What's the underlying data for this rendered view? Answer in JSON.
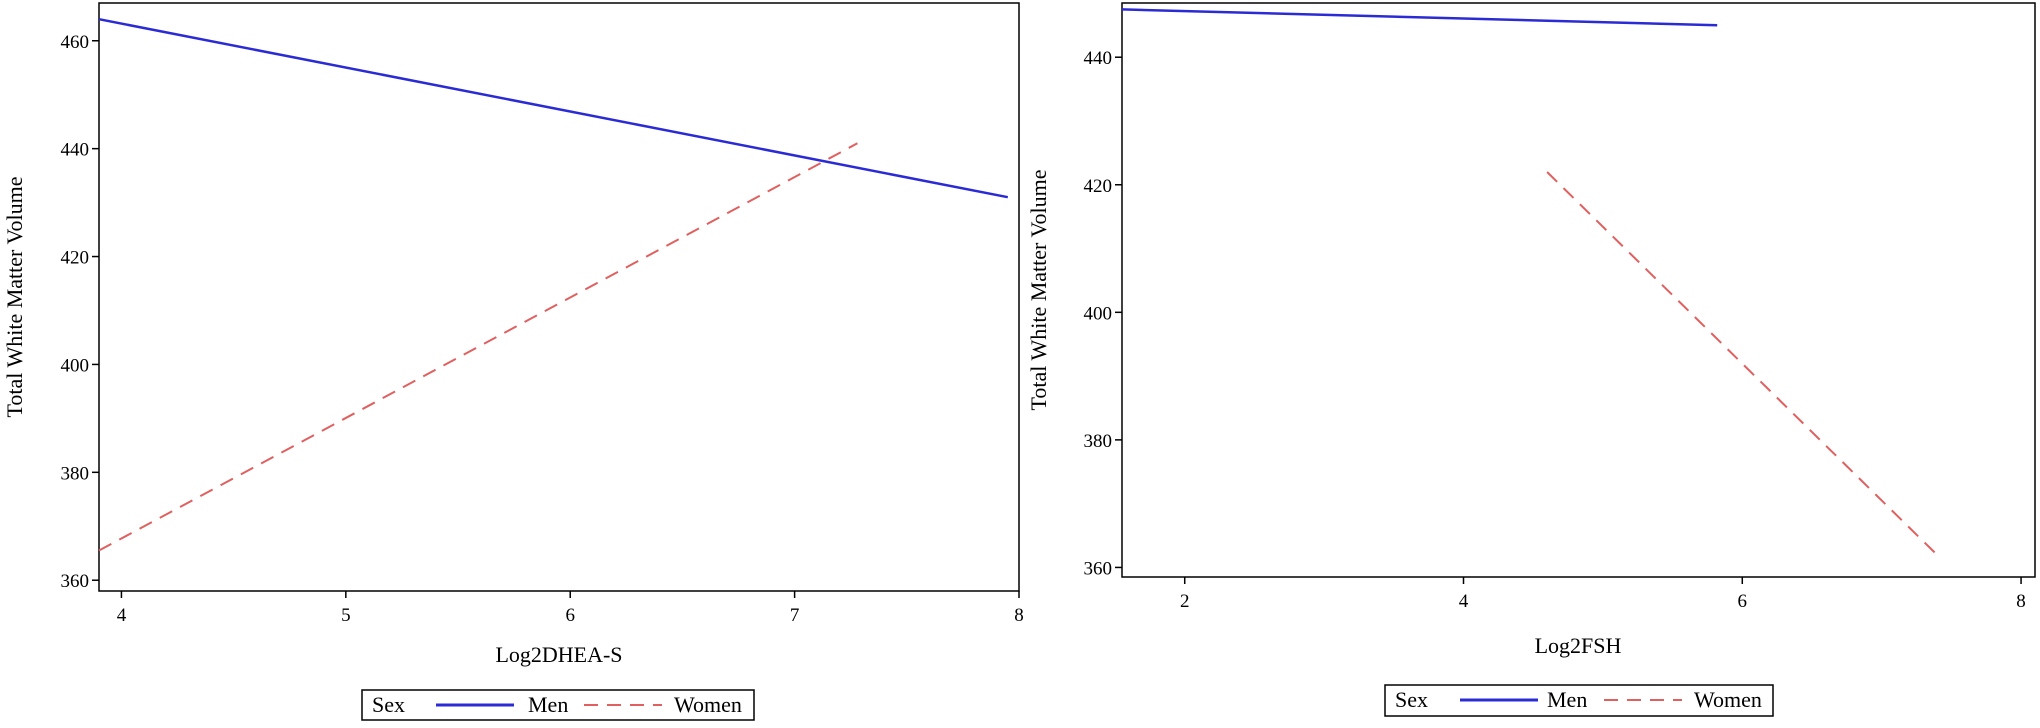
{
  "chart_data": [
    {
      "type": "line",
      "xlabel": "Log2DHEA-S",
      "ylabel": "Total White Matter Volume",
      "xlim": [
        3.9,
        8.0
      ],
      "ylim": [
        358,
        467
      ],
      "xticks": [
        4,
        5,
        6,
        7,
        8
      ],
      "yticks": [
        360,
        380,
        400,
        420,
        440,
        460
      ],
      "grid": false,
      "legend": {
        "position": "bottom",
        "title": "Sex"
      },
      "series": [
        {
          "name": "Men",
          "color": "#2b2bd6",
          "style": "solid",
          "x": [
            3.9,
            7.95
          ],
          "y": [
            464,
            431
          ]
        },
        {
          "name": "Women",
          "color": "#e06060",
          "style": "dashed",
          "x": [
            3.9,
            7.28
          ],
          "y": [
            365.5,
            441
          ]
        }
      ]
    },
    {
      "type": "line",
      "xlabel": "Log2FSH",
      "ylabel": "Total White Matter Volume",
      "xlim": [
        1.55,
        8.1
      ],
      "ylim": [
        358.5,
        448.5
      ],
      "xticks": [
        2,
        4,
        6,
        8
      ],
      "yticks": [
        360,
        380,
        400,
        420,
        440
      ],
      "grid": false,
      "legend": {
        "position": "bottom",
        "title": "Sex"
      },
      "series": [
        {
          "name": "Men",
          "color": "#2b2bd6",
          "style": "solid",
          "x": [
            1.55,
            5.82
          ],
          "y": [
            447.5,
            445
          ]
        },
        {
          "name": "Women",
          "color": "#e06060",
          "style": "dashed",
          "x": [
            4.6,
            7.42
          ],
          "y": [
            422,
            361.5
          ]
        }
      ]
    }
  ]
}
